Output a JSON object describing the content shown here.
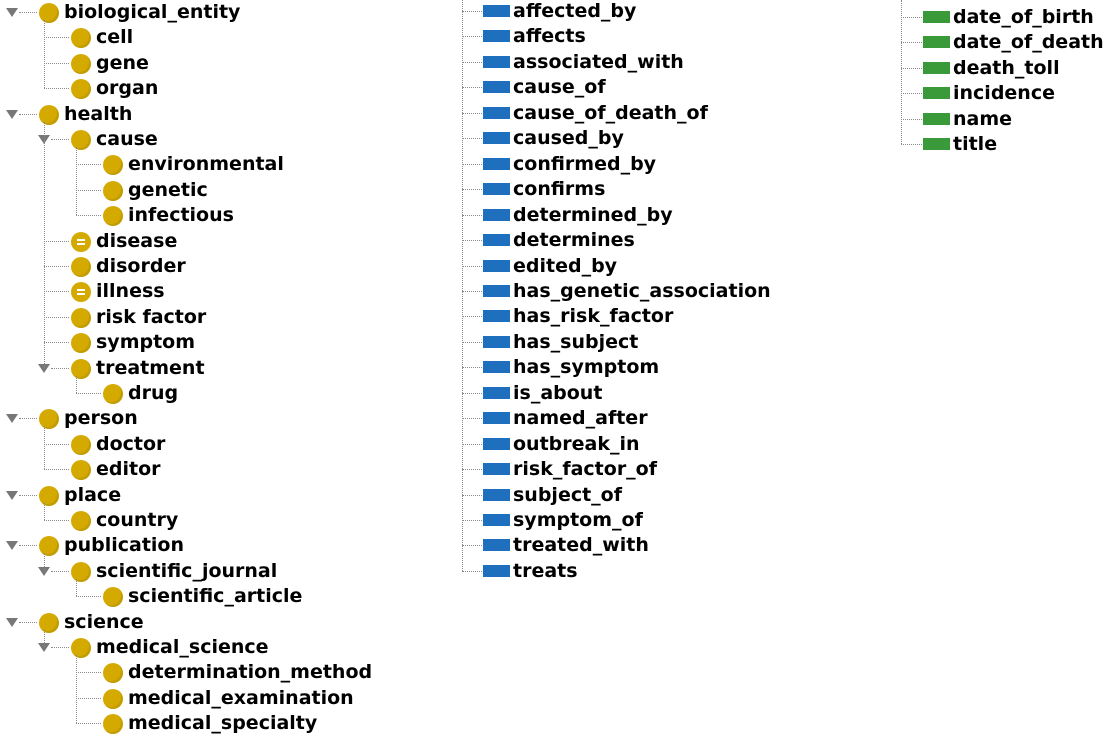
{
  "class_hierarchy": {
    "items": [
      {
        "label": "biological_entity",
        "depth": 0,
        "expanded": true,
        "icon": "class-icon"
      },
      {
        "label": "cell",
        "depth": 1,
        "icon": "class-icon"
      },
      {
        "label": "gene",
        "depth": 1,
        "icon": "class-icon"
      },
      {
        "label": "organ",
        "depth": 1,
        "icon": "class-icon"
      },
      {
        "label": "health",
        "depth": 0,
        "expanded": true,
        "icon": "class-icon"
      },
      {
        "label": "cause",
        "depth": 1,
        "expanded": true,
        "icon": "class-icon"
      },
      {
        "label": "environmental",
        "depth": 2,
        "icon": "class-icon"
      },
      {
        "label": "genetic",
        "depth": 2,
        "icon": "class-icon"
      },
      {
        "label": "infectious",
        "depth": 2,
        "icon": "class-icon"
      },
      {
        "label": "disease",
        "depth": 1,
        "icon": "equivalent-class-icon"
      },
      {
        "label": "disorder",
        "depth": 1,
        "icon": "class-icon"
      },
      {
        "label": "illness",
        "depth": 1,
        "icon": "equivalent-class-icon"
      },
      {
        "label": "risk factor",
        "depth": 1,
        "icon": "class-icon"
      },
      {
        "label": "symptom",
        "depth": 1,
        "icon": "class-icon"
      },
      {
        "label": "treatment",
        "depth": 1,
        "expanded": true,
        "icon": "class-icon"
      },
      {
        "label": "drug",
        "depth": 2,
        "icon": "class-icon"
      },
      {
        "label": "person",
        "depth": 0,
        "expanded": true,
        "icon": "class-icon"
      },
      {
        "label": "doctor",
        "depth": 1,
        "icon": "class-icon"
      },
      {
        "label": "editor",
        "depth": 1,
        "icon": "class-icon"
      },
      {
        "label": "place",
        "depth": 0,
        "expanded": true,
        "icon": "class-icon"
      },
      {
        "label": "country",
        "depth": 1,
        "icon": "class-icon"
      },
      {
        "label": "publication",
        "depth": 0,
        "expanded": true,
        "icon": "class-icon"
      },
      {
        "label": "scientific_journal",
        "depth": 1,
        "expanded": true,
        "icon": "class-icon"
      },
      {
        "label": "scientific_article",
        "depth": 2,
        "icon": "class-icon"
      },
      {
        "label": "science",
        "depth": 0,
        "expanded": true,
        "icon": "class-icon"
      },
      {
        "label": "medical_science",
        "depth": 1,
        "expanded": true,
        "icon": "class-icon"
      },
      {
        "label": "determination_method",
        "depth": 2,
        "icon": "class-icon"
      },
      {
        "label": "medical_examination",
        "depth": 2,
        "icon": "class-icon"
      },
      {
        "label": "medical_specialty",
        "depth": 2,
        "icon": "class-icon"
      }
    ]
  },
  "object_properties": {
    "icon": "object-property-icon",
    "items": [
      "affected_by",
      "affects",
      "associated_with",
      "cause_of",
      "cause_of_death_of",
      "caused_by",
      "confirmed_by",
      "confirms",
      "determined_by",
      "determines",
      "edited_by",
      "has_genetic_association",
      "has_risk_factor",
      "has_subject",
      "has_symptom",
      "is_about",
      "named_after",
      "outbreak_in",
      "risk_factor_of",
      "subject_of",
      "symptom_of",
      "treated_with",
      "treats"
    ]
  },
  "data_properties": {
    "icon": "data-property-icon",
    "items": [
      "date_of_birth",
      "date_of_death",
      "death_toll",
      "incidence",
      "name",
      "title"
    ]
  },
  "colors": {
    "class": "#d4aa00",
    "object_property": "#1f6fbf",
    "data_property": "#3a9a3a",
    "tree_lines": "#8a8a8a"
  }
}
